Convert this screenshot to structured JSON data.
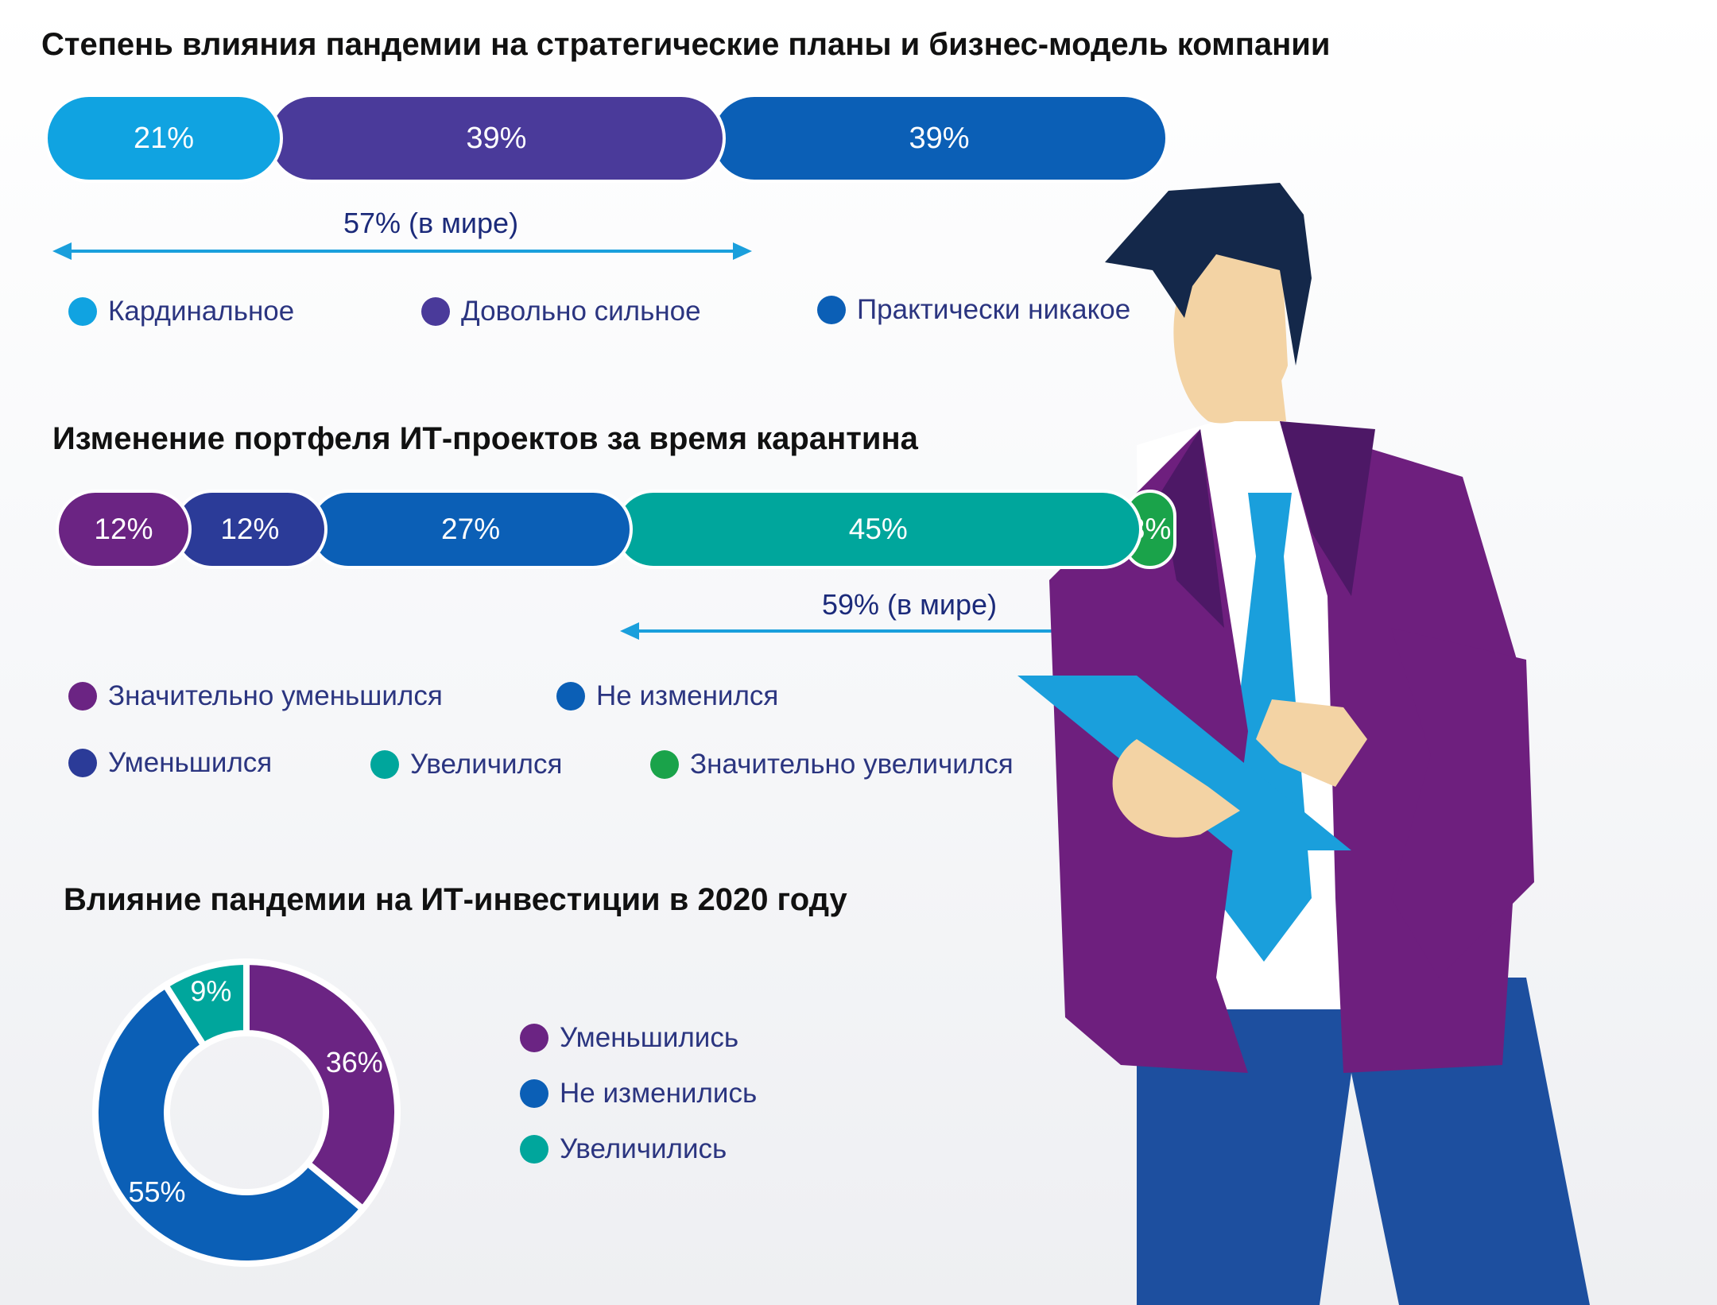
{
  "colors": {
    "cyan": "#10a3e1",
    "violet": "#4a3a9a",
    "blue": "#0b5fb6",
    "plum": "#6b2483",
    "navy": "#2b3b98",
    "teal": "#00a69c",
    "green": "#1aa34a",
    "arrow": "#1a9fdc"
  },
  "chart_data": [
    {
      "type": "bar",
      "title": "Степень влияния пандемии на стратегические планы и бизнес-модель компании",
      "orientation": "horizontal-stacked",
      "series": [
        {
          "name": "Кардинальное",
          "value": 21,
          "label": "21%",
          "color": "#10a3e1"
        },
        {
          "name": "Довольно сильное",
          "value": 39,
          "label": "39%",
          "color": "#4a3a9a"
        },
        {
          "name": "Практически никакое",
          "value": 39,
          "label": "39%",
          "color": "#0b5fb6"
        }
      ],
      "annotation": {
        "text": "57% (в мире)",
        "from_category": 0,
        "to_category": 1
      }
    },
    {
      "type": "bar",
      "title": "Изменение портфеля ИТ-проектов за время карантина",
      "orientation": "horizontal-stacked",
      "series": [
        {
          "name": "Значительно уменьшился",
          "value": 12,
          "label": "12%",
          "color": "#6b2483"
        },
        {
          "name": "Уменьшился",
          "value": 12,
          "label": "12%",
          "color": "#2b3b98"
        },
        {
          "name": "Не изменился",
          "value": 27,
          "label": "27%",
          "color": "#0b5fb6"
        },
        {
          "name": "Увеличился",
          "value": 45,
          "label": "45%",
          "color": "#00a69c"
        },
        {
          "name": "Значительно увеличился",
          "value": 3,
          "label": "3%",
          "color": "#1aa34a"
        }
      ],
      "annotation": {
        "text": "59% (в мире)",
        "from_category": 3,
        "to_category": 4
      }
    },
    {
      "type": "pie",
      "title": "Влияние пандемии на ИТ-инвестиции в 2020 году",
      "donut": true,
      "slices": [
        {
          "name": "Уменьшились",
          "value": 36,
          "label": "36%",
          "color": "#6b2483"
        },
        {
          "name": "Не изменились",
          "value": 55,
          "label": "55%",
          "color": "#0b5fb6"
        },
        {
          "name": "Увеличились",
          "value": 9,
          "label": "9%",
          "color": "#00a69c"
        }
      ]
    }
  ],
  "illustration": {
    "subject": "man-with-tablet-illustration"
  }
}
